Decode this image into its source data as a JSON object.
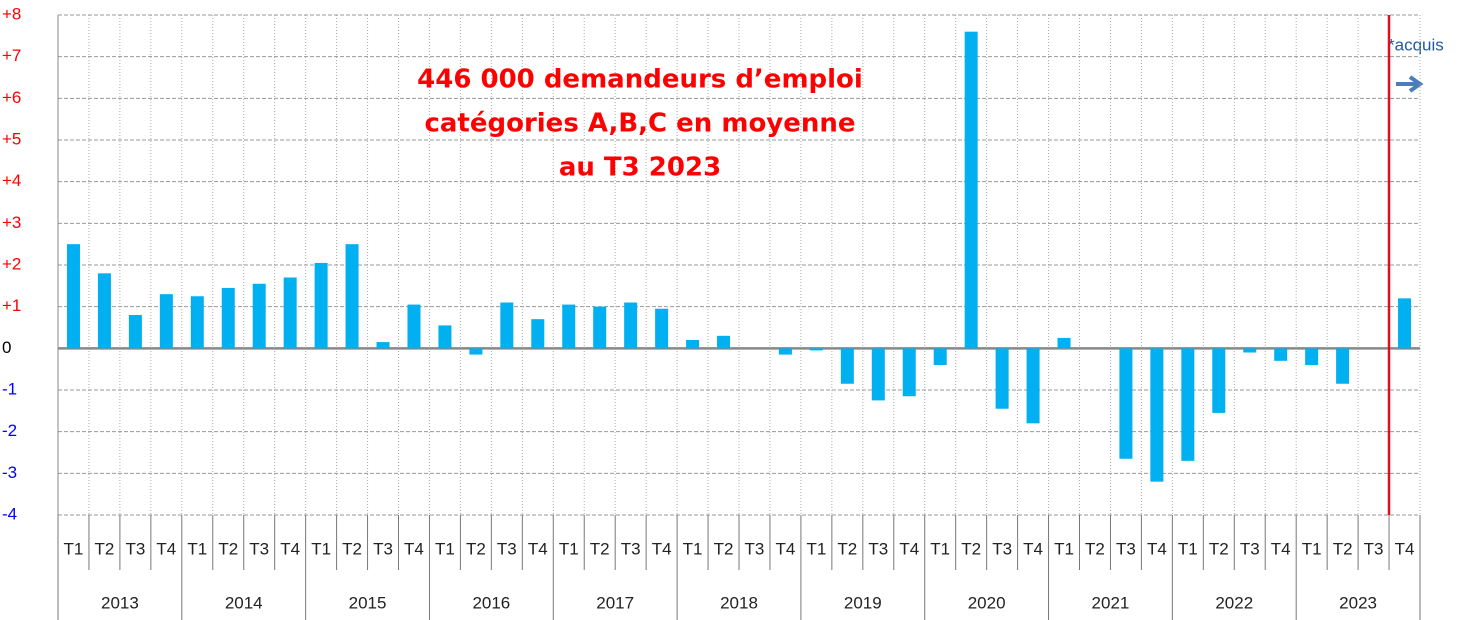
{
  "chart_data": {
    "type": "bar",
    "annotation": [
      "446 000 demandeurs d’emploi",
      "catégories A,B,C en moyenne",
      "au T3 2023"
    ],
    "note": "*acquis",
    "categories": [
      "T1",
      "T2",
      "T3",
      "T4",
      "T1",
      "T2",
      "T3",
      "T4",
      "T1",
      "T2",
      "T3",
      "T4",
      "T1",
      "T2",
      "T3",
      "T4",
      "T1",
      "T2",
      "T3",
      "T4",
      "T1",
      "T2",
      "T3",
      "T4",
      "T1",
      "T2",
      "T3",
      "T4",
      "T1",
      "T2",
      "T3",
      "T4",
      "T1",
      "T2",
      "T3",
      "T4",
      "T1",
      "T2",
      "T3",
      "T4",
      "T1",
      "T2",
      "T3",
      "T4"
    ],
    "category_groups": [
      "2013",
      "2014",
      "2015",
      "2016",
      "2017",
      "2018",
      "2019",
      "2020",
      "2021",
      "2022",
      "2023"
    ],
    "values": [
      2.5,
      1.8,
      0.8,
      1.3,
      1.25,
      1.45,
      1.55,
      1.7,
      2.05,
      2.5,
      0.15,
      1.05,
      0.55,
      -0.15,
      1.1,
      0.7,
      1.05,
      1.0,
      1.1,
      0.95,
      0.2,
      0.3,
      0,
      -0.15,
      -0.05,
      -0.85,
      -1.25,
      -1.15,
      -0.4,
      7.6,
      -1.45,
      -1.8,
      0.25,
      0,
      -2.65,
      -3.2,
      -2.7,
      -1.55,
      -0.1,
      -0.3,
      -0.4,
      -0.85,
      null,
      1.2
    ],
    "color": "#00b0f0",
    "ylim": [
      -4,
      8
    ],
    "yticks": [
      {
        "value": 8,
        "label": "+8"
      },
      {
        "value": 7,
        "label": "+7"
      },
      {
        "value": 6,
        "label": "+6"
      },
      {
        "value": 5,
        "label": "+5"
      },
      {
        "value": 4,
        "label": "+4"
      },
      {
        "value": 3,
        "label": "+3"
      },
      {
        "value": 2,
        "label": "+2"
      },
      {
        "value": 1,
        "label": "+1"
      },
      0,
      -1,
      -2,
      -3,
      -4
    ],
    "grid": true
  }
}
